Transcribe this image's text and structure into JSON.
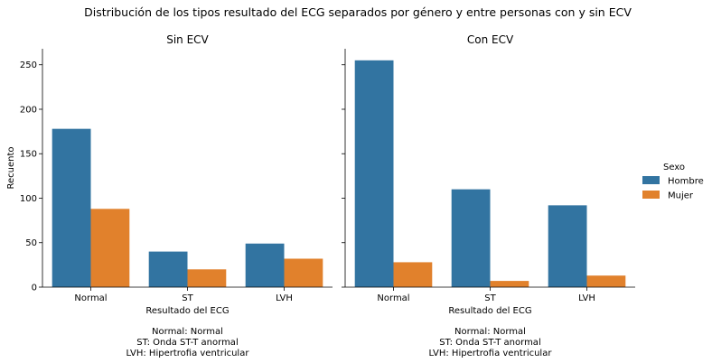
{
  "suptitle": "Distribución de los tipos resultado del ECG separados por género y entre personas con y sin ECV",
  "colors": {
    "Hombre": "#3274a1",
    "Mujer": "#e1812c"
  },
  "legend": {
    "title": "Sexo",
    "placement": "right",
    "entries": [
      "Hombre",
      "Mujer"
    ]
  },
  "chart_data": [
    {
      "type": "bar",
      "title": "Sin ECV",
      "xlabel": "Resultado del ECG",
      "ylabel": "Recuento",
      "ylim": [
        0,
        268
      ],
      "yticks": [
        0,
        50,
        100,
        150,
        200,
        250
      ],
      "categories": [
        "Normal",
        "ST",
        "LVH"
      ],
      "series": [
        {
          "name": "Hombre",
          "values": [
            178,
            40,
            49
          ]
        },
        {
          "name": "Mujer",
          "values": [
            88,
            20,
            32
          ]
        }
      ],
      "caption": [
        "Normal: Normal",
        "ST: Onda ST-T anormal",
        "LVH: Hipertrofia ventricular"
      ]
    },
    {
      "type": "bar",
      "title": "Con ECV",
      "xlabel": "Resultado del ECG",
      "ylabel": "",
      "ylim": [
        0,
        268
      ],
      "yticks": [
        0,
        50,
        100,
        150,
        200,
        250
      ],
      "categories": [
        "Normal",
        "ST",
        "LVH"
      ],
      "series": [
        {
          "name": "Hombre",
          "values": [
            255,
            110,
            92
          ]
        },
        {
          "name": "Mujer",
          "values": [
            28,
            7,
            13
          ]
        }
      ],
      "caption": [
        "Normal: Normal",
        "ST: Onda ST-T anormal",
        "LVH: Hipertrofia ventricular"
      ]
    }
  ]
}
